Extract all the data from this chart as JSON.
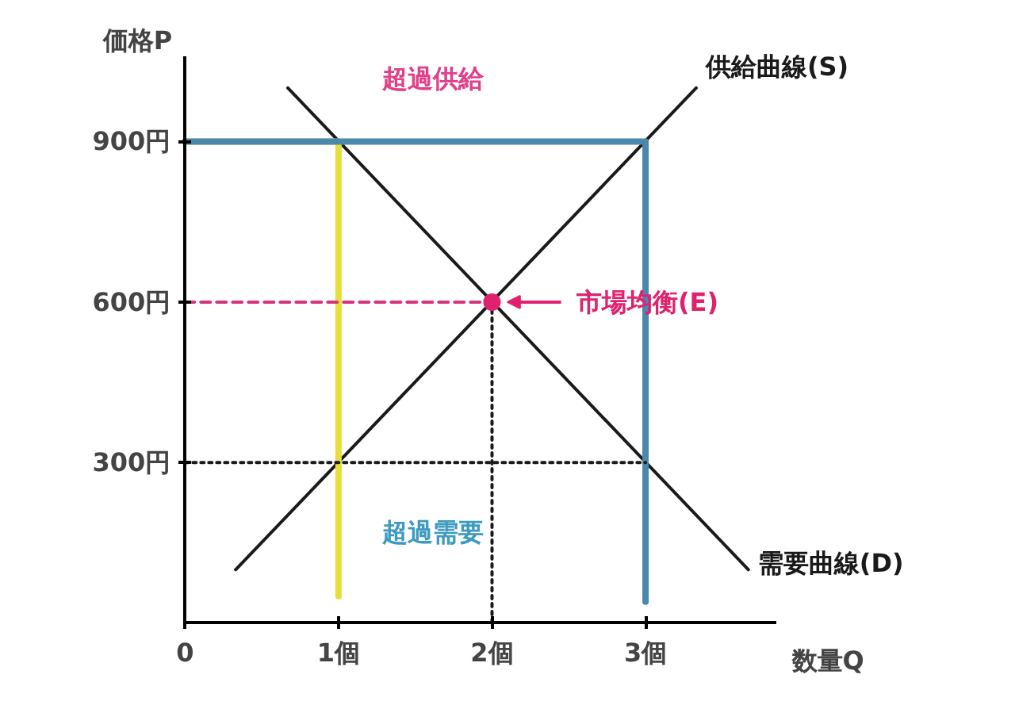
{
  "chart_data": {
    "type": "line",
    "xlabel": "数量Q",
    "ylabel": "価格P",
    "xlim": [
      0,
      3.85
    ],
    "ylim": [
      0,
      1060
    ],
    "xticks": [
      {
        "value": 0,
        "label": "0"
      },
      {
        "value": 1,
        "label": "1個"
      },
      {
        "value": 2,
        "label": "2個"
      },
      {
        "value": 3,
        "label": "3個"
      }
    ],
    "yticks": [
      {
        "value": 300,
        "label": "300円"
      },
      {
        "value": 600,
        "label": "600円"
      },
      {
        "value": 900,
        "label": "900円"
      }
    ],
    "grid": false,
    "marker": "none",
    "line_style": "solid",
    "series": [
      {
        "name": "供給曲線(S)",
        "color": "#1a1a1a",
        "x": [
          0.33,
          3.33
        ],
        "values": [
          100,
          1000
        ]
      },
      {
        "name": "需要曲線(D)",
        "color": "#1a1a1a",
        "x": [
          0.67,
          3.67
        ],
        "values": [
          1000,
          100
        ]
      },
      {
        "color": "#e6e03c",
        "x": [
          0,
          1,
          1
        ],
        "values": [
          900,
          900,
          50
        ]
      },
      {
        "color": "#4a88ad",
        "x": [
          0,
          3,
          3
        ],
        "values": [
          900,
          900,
          40
        ]
      },
      {
        "color": "#d6337a",
        "x": [
          0,
          2
        ],
        "values": [
          600,
          600
        ],
        "line_style": "dashed"
      },
      {
        "color": "#1a1a1a",
        "x": [
          0,
          3
        ],
        "values": [
          300,
          300
        ],
        "line_style": "dotted"
      },
      {
        "color": "#1a1a1a",
        "x": [
          2,
          2
        ],
        "values": [
          600,
          0
        ],
        "line_style": "dotted"
      },
      {
        "name": "市場均衡(E)",
        "type": "scatter",
        "marker": "circle",
        "color": "#e0226e",
        "x": [
          2
        ],
        "values": [
          600
        ]
      }
    ],
    "annotations": [
      "超過供給",
      "超過需要"
    ]
  }
}
